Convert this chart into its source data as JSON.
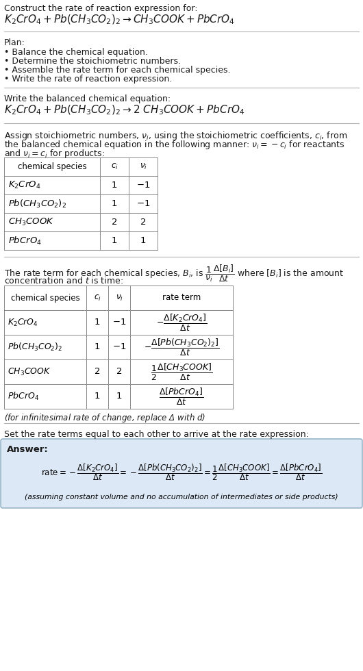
{
  "bg_color": "#ffffff",
  "text_color": "#1a1a1a",
  "answer_box_color": "#dce8f5",
  "answer_box_edge": "#8aaabf",
  "title_text": "Construct the rate of reaction expression for:",
  "plan_header": "Plan:",
  "plan_items": [
    "• Balance the chemical equation.",
    "• Determine the stoichiometric numbers.",
    "• Assemble the rate term for each chemical species.",
    "• Write the rate of reaction expression."
  ],
  "balanced_header": "Write the balanced chemical equation:",
  "stoich_header_line1": "Assign stoichiometric numbers, $\\nu_i$, using the stoichiometric coefficients, $c_i$, from",
  "stoich_header_line2": "the balanced chemical equation in the following manner: $\\nu_i = -c_i$ for reactants",
  "stoich_header_line3": "and $\\nu_i = c_i$ for products:",
  "table1_header": [
    "chemical species",
    "$c_i$",
    "$\\nu_i$"
  ],
  "table1_rows": [
    [
      "$K_2CrO_4$",
      "1",
      "$-1$"
    ],
    [
      "$Pb(CH_3CO_2)_2$",
      "1",
      "$-1$"
    ],
    [
      "$CH_3COOK$",
      "2",
      "2"
    ],
    [
      "$PbCrO_4$",
      "1",
      "1"
    ]
  ],
  "rate_term_line1": "The rate term for each chemical species, $B_i$, is $\\dfrac{1}{\\nu_i}\\dfrac{\\Delta[B_i]}{\\Delta t}$ where $[B_i]$ is the amount",
  "rate_term_line2": "concentration and $t$ is time:",
  "table2_header": [
    "chemical species",
    "$c_i$",
    "$\\nu_i$",
    "rate term"
  ],
  "table2_rows": [
    [
      "$K_2CrO_4$",
      "1",
      "$-1$",
      "$-\\dfrac{\\Delta[K_2CrO_4]}{\\Delta t}$"
    ],
    [
      "$Pb(CH_3CO_2)_2$",
      "1",
      "$-1$",
      "$-\\dfrac{\\Delta[Pb(CH_3CO_2)_2]}{\\Delta t}$"
    ],
    [
      "$CH_3COOK$",
      "2",
      "2",
      "$\\dfrac{1}{2}\\dfrac{\\Delta[CH_3COOK]}{\\Delta t}$"
    ],
    [
      "$PbCrO_4$",
      "1",
      "1",
      "$\\dfrac{\\Delta[PbCrO_4]}{\\Delta t}$"
    ]
  ],
  "infinitesimal_note": "(for infinitesimal rate of change, replace Δ with $d$)",
  "set_equal_header": "Set the rate terms equal to each other to arrive at the rate expression:",
  "answer_label": "Answer:",
  "assumption_note": "(assuming constant volume and no accumulation of intermediates or side products)"
}
